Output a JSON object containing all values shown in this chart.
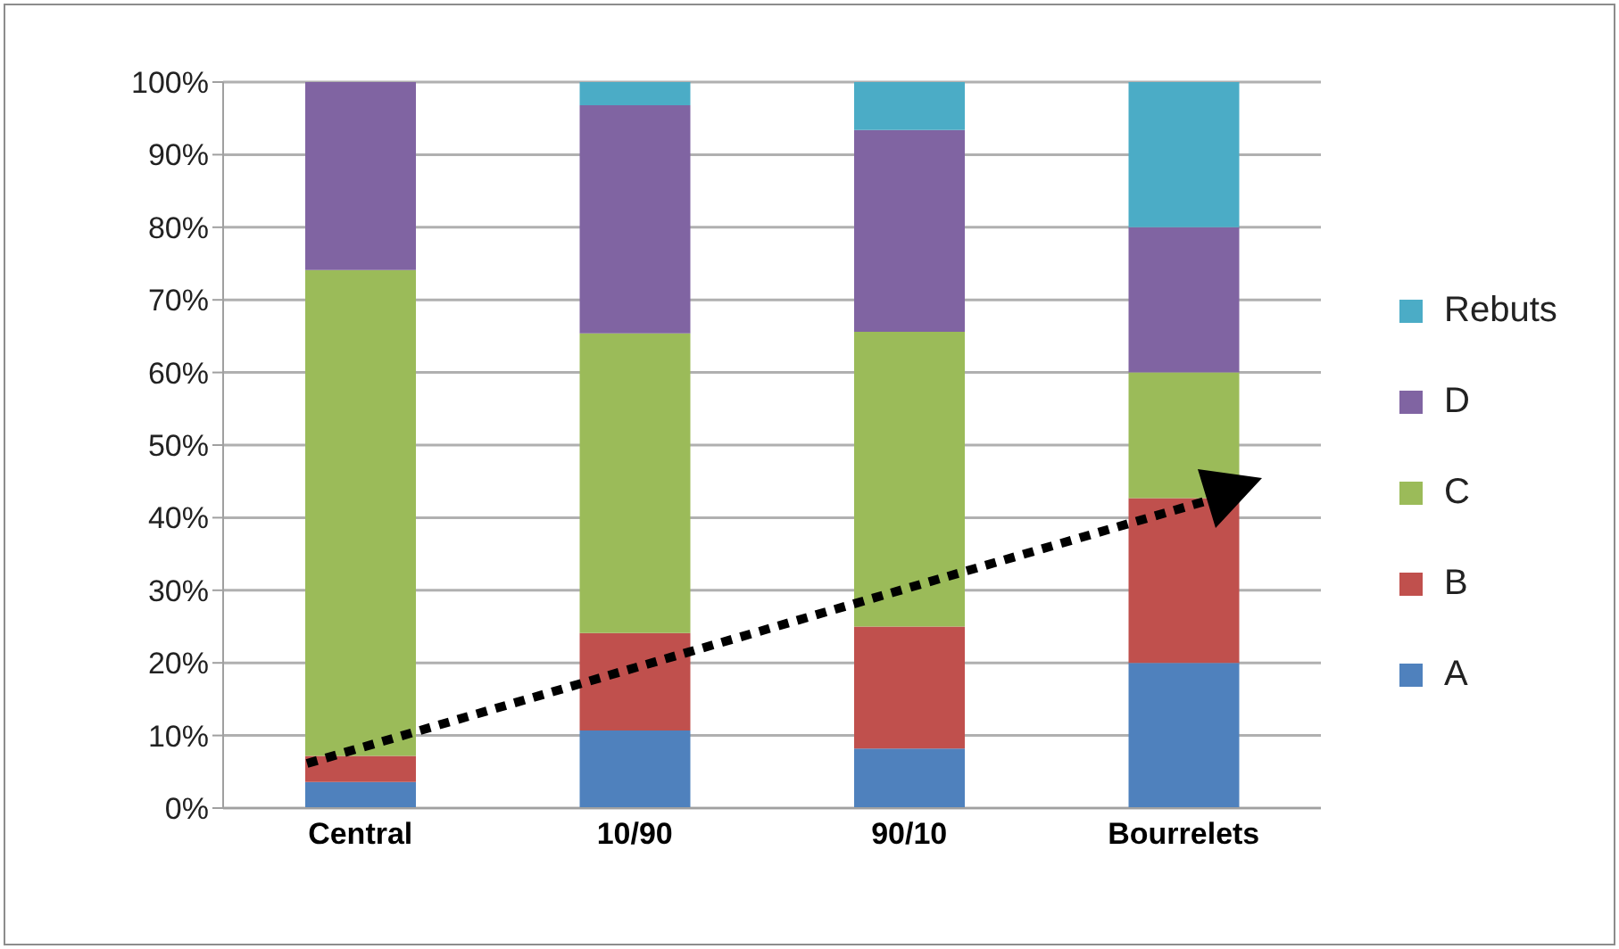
{
  "chart_data": {
    "type": "bar",
    "stacked": true,
    "categories": [
      "Central",
      "10/90",
      "90/10",
      "Bourrelets"
    ],
    "series": [
      {
        "name": "A",
        "color": "#4f81bd",
        "values": [
          3.6,
          10.7,
          8.2,
          20
        ]
      },
      {
        "name": "B",
        "color": "#c0504d",
        "values": [
          3.6,
          13.4,
          16.8,
          22.7
        ]
      },
      {
        "name": "C",
        "color": "#9bbb59",
        "values": [
          66.9,
          41.3,
          40.6,
          17.3
        ]
      },
      {
        "name": "D",
        "color": "#8064a2",
        "values": [
          25.9,
          31.4,
          27.8,
          20
        ]
      },
      {
        "name": "Rebuts",
        "color": "#4bacc6",
        "values": [
          0,
          3.2,
          6.6,
          20
        ]
      }
    ],
    "ylim": [
      0,
      100
    ],
    "yticks": [
      {
        "value": 0,
        "label": "0%"
      },
      {
        "value": 10,
        "label": "10%"
      },
      {
        "value": 20,
        "label": "20%"
      },
      {
        "value": 30,
        "label": "30%"
      },
      {
        "value": 40,
        "label": "40%"
      },
      {
        "value": 50,
        "label": "50%"
      },
      {
        "value": 60,
        "label": "60%"
      },
      {
        "value": 70,
        "label": "70%"
      },
      {
        "value": 80,
        "label": "80%"
      },
      {
        "value": 90,
        "label": "90%"
      },
      {
        "value": 100,
        "label": "100%"
      }
    ],
    "grid": "y",
    "legend": "right"
  }
}
